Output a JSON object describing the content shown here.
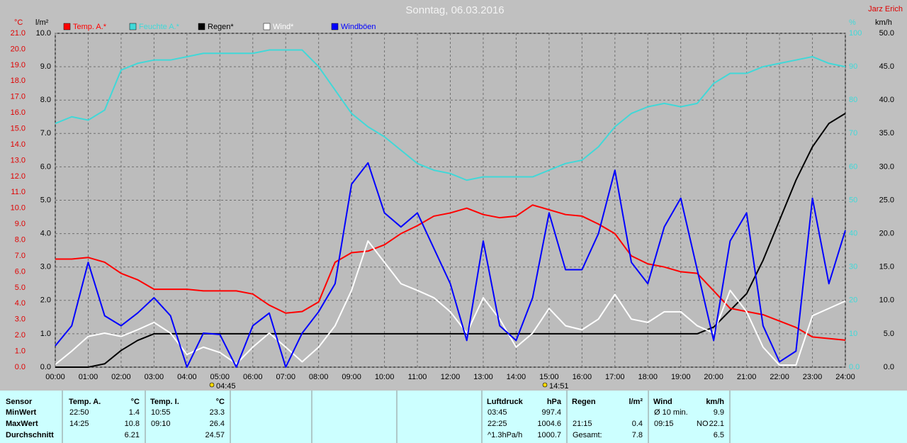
{
  "chart_data": {
    "type": "line",
    "title": "Sonntag, 06.03.2016",
    "author": "Jarz Erich",
    "y_label": "°C",
    "y2_label": "l/m²",
    "y3_label": "%",
    "y4_label": "km/h",
    "annotations": [
      "04:45",
      "14:51"
    ],
    "grid": true,
    "xlim": [
      0,
      24
    ],
    "xticks": [
      {
        "value": 0,
        "label": "00:00"
      },
      {
        "value": 1,
        "label": "01:00"
      },
      {
        "value": 2,
        "label": "02:00"
      },
      {
        "value": 3,
        "label": "03:00"
      },
      {
        "value": 4,
        "label": "04:00"
      },
      {
        "value": 5,
        "label": "05:00"
      },
      {
        "value": 6,
        "label": "06:00"
      },
      {
        "value": 7,
        "label": "07:00"
      },
      {
        "value": 8,
        "label": "08:00"
      },
      {
        "value": 9,
        "label": "09:00"
      },
      {
        "value": 10,
        "label": "10:00"
      },
      {
        "value": 11,
        "label": "11:00"
      },
      {
        "value": 12,
        "label": "12:00"
      },
      {
        "value": 13,
        "label": "13:00"
      },
      {
        "value": 14,
        "label": "14:00"
      },
      {
        "value": 15,
        "label": "15:00"
      },
      {
        "value": 16,
        "label": "16:00"
      },
      {
        "value": 17,
        "label": "17:00"
      },
      {
        "value": 18,
        "label": "18:00"
      },
      {
        "value": 19,
        "label": "19:00"
      },
      {
        "value": 20,
        "label": "20:00"
      },
      {
        "value": 21,
        "label": "21:00"
      },
      {
        "value": 22,
        "label": "22:00"
      },
      {
        "value": 23,
        "label": "23:00"
      },
      {
        "value": 24,
        "label": "24:00"
      }
    ],
    "ylim": [
      0,
      21
    ],
    "yticks": [
      {
        "value": 0,
        "label": "0.0"
      },
      {
        "value": 1,
        "label": "1.0"
      },
      {
        "value": 2,
        "label": "2.0"
      },
      {
        "value": 3,
        "label": "3.0"
      },
      {
        "value": 4,
        "label": "4.0"
      },
      {
        "value": 5,
        "label": "5.0"
      },
      {
        "value": 6,
        "label": "6.0"
      },
      {
        "value": 7,
        "label": "7.0"
      },
      {
        "value": 8,
        "label": "8.0"
      },
      {
        "value": 9,
        "label": "9.0"
      },
      {
        "value": 10,
        "label": "10.0"
      },
      {
        "value": 11,
        "label": "11.0"
      },
      {
        "value": 12,
        "label": "12.0"
      },
      {
        "value": 13,
        "label": "13.0"
      },
      {
        "value": 14,
        "label": "14.0"
      },
      {
        "value": 15,
        "label": "15.0"
      },
      {
        "value": 16,
        "label": "16.0"
      },
      {
        "value": 17,
        "label": "17.0"
      },
      {
        "value": 18,
        "label": "18.0"
      },
      {
        "value": 19,
        "label": "19.0"
      },
      {
        "value": 20,
        "label": "20.0"
      },
      {
        "value": 21,
        "label": "21.0"
      }
    ],
    "y2lim": [
      0,
      10
    ],
    "y2ticks": [
      {
        "value": 0,
        "label": "0.0"
      },
      {
        "value": 1,
        "label": "1.0"
      },
      {
        "value": 2,
        "label": "2.0"
      },
      {
        "value": 3,
        "label": "3.0"
      },
      {
        "value": 4,
        "label": "4.0"
      },
      {
        "value": 5,
        "label": "5.0"
      },
      {
        "value": 6,
        "label": "6.0"
      },
      {
        "value": 7,
        "label": "7.0"
      },
      {
        "value": 8,
        "label": "8.0"
      },
      {
        "value": 9,
        "label": "9.0"
      },
      {
        "value": 10,
        "label": "10.0"
      }
    ],
    "y3lim": [
      0,
      100
    ],
    "y3ticks": [
      {
        "value": 0,
        "label": "0.0"
      },
      10,
      20,
      30,
      40,
      50,
      60,
      70,
      80,
      90,
      100
    ],
    "y4lim": [
      0,
      50
    ],
    "y4ticks": [
      {
        "value": 0,
        "label": "0.0"
      },
      {
        "value": 5,
        "label": "5.0"
      },
      {
        "value": 10,
        "label": "10.0"
      },
      {
        "value": 15,
        "label": "15.0"
      },
      {
        "value": 20,
        "label": "20.0"
      },
      {
        "value": 25,
        "label": "25.0"
      },
      {
        "value": 30,
        "label": "30.0"
      },
      {
        "value": 35,
        "label": "35.0"
      },
      {
        "value": 40,
        "label": "40.0"
      },
      {
        "value": 45,
        "label": "45.0"
      },
      {
        "value": 50,
        "label": "50.0"
      }
    ],
    "x": [
      0,
      0.5,
      1,
      1.5,
      2,
      2.5,
      3,
      3.5,
      4,
      4.5,
      5,
      5.5,
      6,
      6.5,
      7,
      7.5,
      8,
      8.5,
      9,
      9.5,
      10,
      10.5,
      11,
      11.5,
      12,
      12.5,
      13,
      13.5,
      14,
      14.5,
      15,
      15.5,
      16,
      16.5,
      17,
      17.5,
      18,
      18.5,
      19,
      19.5,
      20,
      20.5,
      21,
      21.5,
      22,
      22.5,
      23,
      23.5,
      24
    ],
    "series": [
      {
        "name": "Temp. A.*",
        "color": "#ff0000",
        "axis": "y",
        "values": [
          6.8,
          6.8,
          6.9,
          6.6,
          5.9,
          5.5,
          4.9,
          4.9,
          4.9,
          4.8,
          4.8,
          4.8,
          4.6,
          3.9,
          3.4,
          3.5,
          4.1,
          6.6,
          7.2,
          7.3,
          7.7,
          8.4,
          8.9,
          9.5,
          9.7,
          10.0,
          9.6,
          9.4,
          9.5,
          10.2,
          9.9,
          9.6,
          9.5,
          9.0,
          8.4,
          7.0,
          6.5,
          6.3,
          6.0,
          5.9,
          4.8,
          3.7,
          3.5,
          3.3,
          2.9,
          2.5,
          1.9,
          1.8,
          1.7
        ]
      },
      {
        "name": "Feuchte A.*",
        "color": "#40d8d8",
        "axis": "y3",
        "values": [
          73,
          75,
          74,
          77,
          89,
          91,
          92,
          92,
          93,
          94,
          94,
          94,
          94,
          95,
          95,
          95,
          90,
          83,
          76,
          72,
          69,
          65,
          61,
          59,
          58,
          56,
          57,
          57,
          57,
          57,
          59,
          61,
          62,
          66,
          72,
          76,
          78,
          79,
          78,
          79,
          85,
          88,
          88,
          90,
          91,
          92,
          93,
          91,
          90
        ]
      },
      {
        "name": "Regen*",
        "color": "#000000",
        "axis": "y2",
        "values": [
          0,
          0,
          0,
          0.1,
          0.5,
          0.8,
          1.0,
          1.0,
          1.0,
          1.0,
          1.0,
          1.0,
          1.0,
          1.0,
          1.0,
          1.0,
          1.0,
          1.0,
          1.0,
          1.0,
          1.0,
          1.0,
          1.0,
          1.0,
          1.0,
          1.0,
          1.0,
          1.0,
          1.0,
          1.0,
          1.0,
          1.0,
          1.0,
          1.0,
          1.0,
          1.0,
          1.0,
          1.0,
          1.0,
          1.0,
          1.2,
          1.7,
          2.2,
          3.2,
          4.4,
          5.6,
          6.6,
          7.3,
          7.6
        ]
      },
      {
        "name": "Wind*",
        "color": "#ffffff",
        "axis": "y4",
        "values": [
          0.4,
          2.4,
          4.6,
          5.1,
          4.6,
          5.6,
          6.7,
          5.1,
          1.9,
          3.0,
          2.2,
          0.5,
          3.0,
          5.1,
          3.0,
          0.8,
          3.0,
          6.2,
          11.5,
          18.9,
          15.7,
          12.5,
          11.5,
          10.4,
          8.3,
          5.1,
          10.4,
          7.2,
          3.0,
          5.1,
          8.8,
          6.2,
          5.6,
          7.2,
          10.9,
          7.2,
          6.7,
          8.3,
          8.3,
          6.2,
          5.1,
          11.5,
          8.3,
          3.0,
          0.3,
          0.3,
          7.7,
          8.8,
          9.9
        ]
      },
      {
        "name": "Windböen",
        "color": "#0000ff",
        "axis": "y4",
        "values": [
          3.2,
          6.2,
          15.7,
          7.7,
          6.2,
          8.1,
          10.4,
          7.7,
          0,
          5.1,
          4.9,
          0,
          6.2,
          8.1,
          0,
          5.1,
          8.3,
          12.5,
          27.4,
          30.6,
          23.1,
          21.0,
          23.1,
          17.8,
          12.5,
          4.0,
          18.9,
          6.2,
          4.0,
          10.4,
          23.1,
          14.6,
          14.6,
          20.0,
          29.5,
          15.7,
          12.5,
          21.0,
          25.3,
          14.6,
          4.0,
          18.9,
          23.1,
          6.2,
          0.8,
          2.4,
          25.3,
          12.5,
          20.5
        ]
      }
    ]
  },
  "table": {
    "header": "Sensor",
    "row_labels": [
      "MinWert",
      "MaxWert",
      "Durchschnitt"
    ],
    "groups": [
      {
        "name": "Temp. A.",
        "unit": "°C",
        "rows": [
          [
            "22:50",
            "1.4"
          ],
          [
            "14:25",
            "10.8"
          ],
          [
            "6.21"
          ]
        ]
      },
      {
        "name": "Temp. I.",
        "unit": "°C",
        "rows": [
          [
            "10:55",
            "23.3"
          ],
          [
            "09:10",
            "26.4"
          ],
          [
            "24.57"
          ]
        ]
      },
      {
        "name": "Luftdruck",
        "unit": "hPa",
        "rows": [
          [
            "03:45",
            "997.4"
          ],
          [
            "22:25",
            "1004.6"
          ],
          [
            "^1.3hPa/h",
            "1000.7"
          ]
        ]
      },
      {
        "name": "Regen",
        "unit": "l/m²",
        "rows": [
          null,
          [
            "21:15",
            "0.4"
          ],
          [
            "Gesamt:",
            "7.8"
          ]
        ]
      },
      {
        "name": "Wind",
        "unit": "km/h",
        "rows": [
          [
            "Ø 10 min.",
            "9.9"
          ],
          [
            "09:15",
            "NO",
            "22.1"
          ],
          [
            "6.5"
          ]
        ]
      }
    ]
  }
}
